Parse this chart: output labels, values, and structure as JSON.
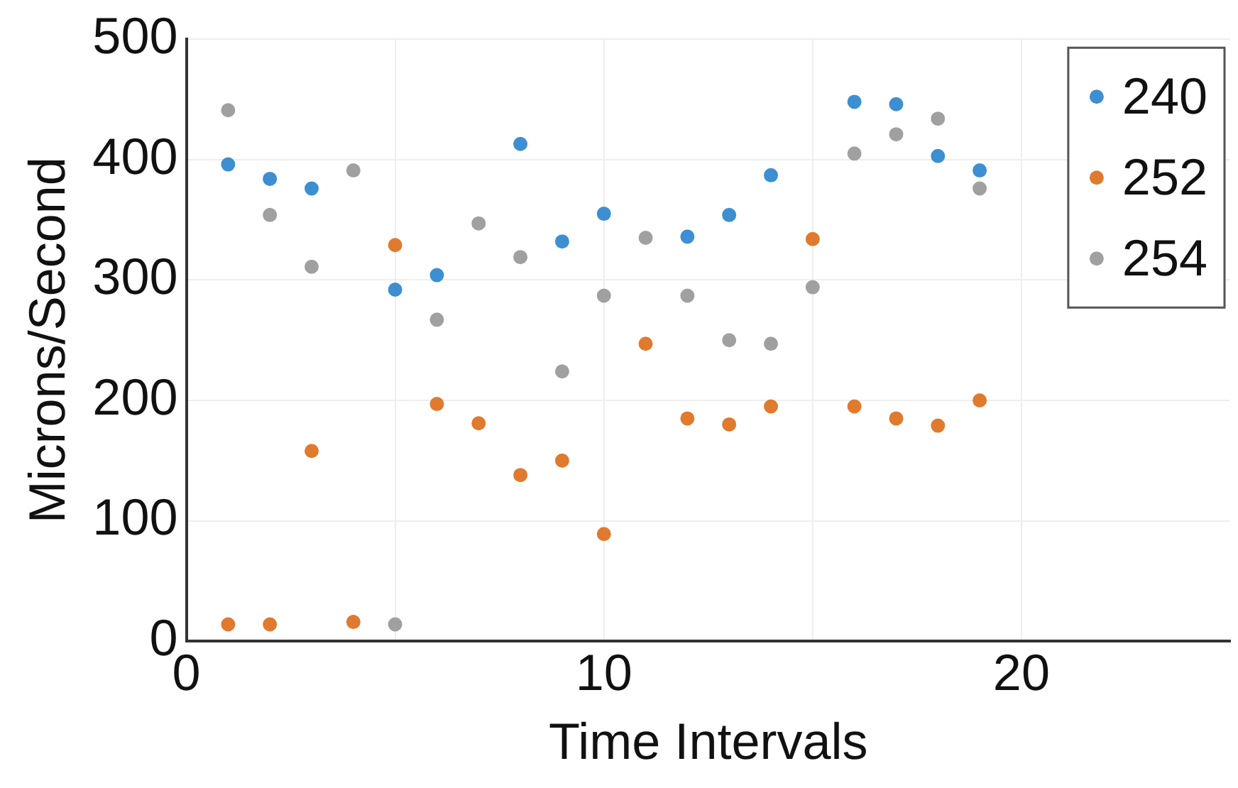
{
  "chart_data": {
    "type": "scatter",
    "xlabel": "Time Intervals",
    "ylabel": "Microns/Second",
    "x": [
      1,
      2,
      3,
      4,
      5,
      6,
      7,
      8,
      9,
      10,
      11,
      12,
      13,
      14,
      15,
      16,
      17,
      18,
      19
    ],
    "series": [
      {
        "name": "240",
        "color": "#3d8fd1",
        "values": [
          396,
          384,
          376,
          null,
          292,
          304,
          null,
          413,
          332,
          355,
          null,
          336,
          354,
          387,
          null,
          448,
          446,
          403,
          391
        ]
      },
      {
        "name": "252",
        "color": "#e07a2e",
        "values": [
          14,
          14,
          158,
          16,
          329,
          197,
          181,
          138,
          150,
          89,
          247,
          185,
          180,
          195,
          334,
          195,
          185,
          179,
          200
        ]
      },
      {
        "name": "254",
        "color": "#a0a0a0",
        "values": [
          441,
          354,
          311,
          391,
          14,
          267,
          347,
          319,
          224,
          287,
          335,
          287,
          250,
          247,
          294,
          405,
          421,
          434,
          376
        ]
      }
    ],
    "xlim": [
      0,
      25
    ],
    "xticks": [
      0,
      {
        "value": 5,
        "label": null
      },
      10,
      {
        "value": 15,
        "label": null
      },
      20
    ],
    "ylim": [
      0,
      500
    ],
    "yticks": [
      0,
      100,
      200,
      300,
      400,
      500
    ],
    "grid": true,
    "legend": "top right",
    "marker": "circle"
  }
}
